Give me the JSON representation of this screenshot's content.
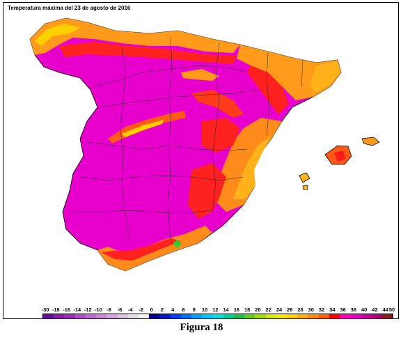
{
  "map": {
    "title": "Temperatura máxima del 23 de agosto de 2016",
    "region": "Península Ibérica y Baleares",
    "colors": {
      "extreme": "#e600c8",
      "very_hot": "#f21ee0",
      "hot_red": "#ff1a1a",
      "orange": "#ff8c1a",
      "amber": "#ffb21a",
      "yellow": "#ffd400",
      "green": "#33cc33",
      "border": "#000000",
      "background": "#ffffff"
    }
  },
  "legend": {
    "labels": [
      "-30",
      "-18",
      "-16",
      "-14",
      "-12",
      "-10",
      "-8",
      "-6",
      "-4",
      "-2",
      "0",
      "2",
      "4",
      "6",
      "8",
      "10",
      "12",
      "14",
      "16",
      "18",
      "20",
      "22",
      "24",
      "26",
      "28",
      "30",
      "32",
      "34",
      "36",
      "38",
      "40",
      "42",
      "44",
      "50"
    ],
    "swatches": [
      "#6a0a9a",
      "#8a1ab0",
      "#a02ac0",
      "#b44ccc",
      "#c06ad2",
      "#cc88d8",
      "#d4a4de",
      "#dcc0e4",
      "#e6dcea",
      "#f4f4f4",
      "#00008c",
      "#0018c8",
      "#0040ff",
      "#0070ff",
      "#00a0ff",
      "#00c8ff",
      "#00e0e0",
      "#00d0a0",
      "#20c050",
      "#60d020",
      "#a0e000",
      "#d8e800",
      "#f8e800",
      "#ffd000",
      "#ffb000",
      "#ff9000",
      "#ff6000",
      "#ff0000",
      "#ff00b4",
      "#e600c8",
      "#d000a0",
      "#b4007c",
      "#8c1a1a"
    ]
  },
  "caption": "Figura 18"
}
